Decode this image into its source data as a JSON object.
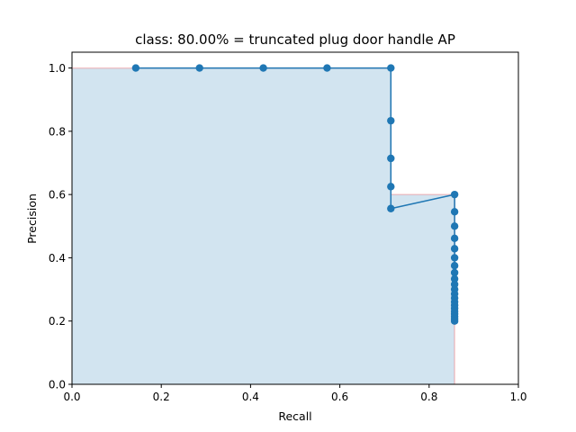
{
  "chart_data": {
    "type": "line",
    "title": "class: 80.00% = truncated plug door handle AP",
    "xlabel": "Recall",
    "ylabel": "Precision",
    "xlim": [
      0.0,
      1.0
    ],
    "ylim": [
      0.0,
      1.05
    ],
    "xticks": [
      "0.0",
      "0.2",
      "0.4",
      "0.6",
      "0.8",
      "1.0"
    ],
    "yticks": [
      "0.0",
      "0.2",
      "0.4",
      "0.6",
      "0.8",
      "1.0"
    ],
    "grid": false,
    "series": [
      {
        "x": [
          0.1429,
          0.2857,
          0.4286,
          0.5714,
          0.7143,
          0.7143,
          0.7143,
          0.7143,
          0.7143,
          0.8571,
          0.8571,
          0.8571,
          0.8571,
          0.8571,
          0.8571,
          0.8571,
          0.8571,
          0.8571,
          0.8571,
          0.8571,
          0.8571,
          0.8571,
          0.8571,
          0.8571,
          0.8571,
          0.8571,
          0.8571,
          0.8571,
          0.8571,
          0.8571
        ],
        "y": [
          1.0,
          1.0,
          1.0,
          1.0,
          1.0,
          0.8333,
          0.7143,
          0.625,
          0.5556,
          0.6,
          0.5455,
          0.5,
          0.4615,
          0.4286,
          0.4,
          0.375,
          0.3529,
          0.3333,
          0.3158,
          0.3,
          0.2857,
          0.2727,
          0.2609,
          0.25,
          0.24,
          0.2308,
          0.2222,
          0.2143,
          0.2069,
          0.2
        ],
        "color": "#1f77b4"
      },
      {
        "role": "interpolated precision envelope (filled)",
        "x": [
          0.0,
          0.7143,
          0.7143,
          0.8571,
          0.8571
        ],
        "y": [
          1.0,
          1.0,
          0.6,
          0.6,
          0.0
        ],
        "color": "#ff0000",
        "fill_color": "#1f77b4"
      }
    ]
  }
}
